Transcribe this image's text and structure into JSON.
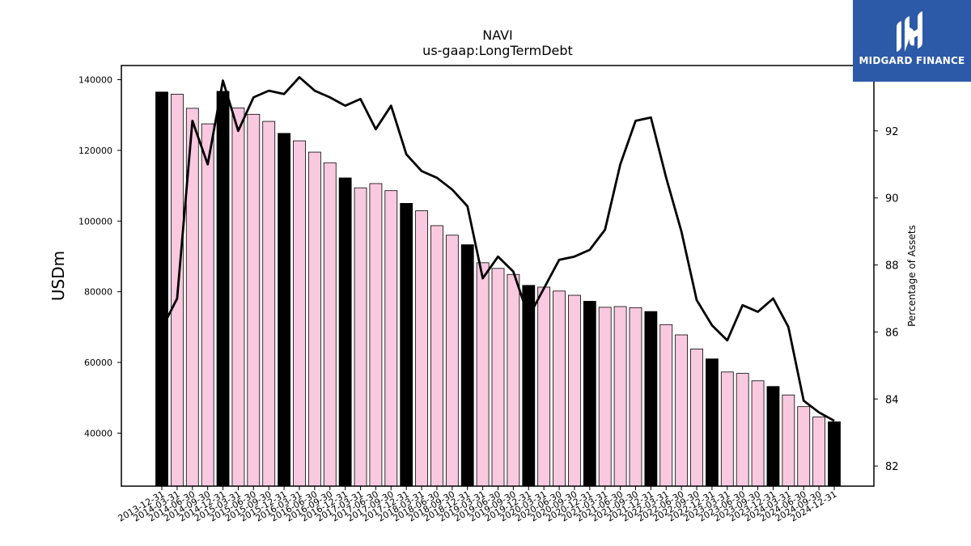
{
  "brand": {
    "name": "MIDGARD FINANCE",
    "logo_color": "#2d5aa8"
  },
  "chart_data": {
    "type": "bar",
    "title": "NAVI",
    "subtitle": "us-gaap:LongTermDebt",
    "ylabel": "USDm",
    "y2label": "Percentage of Assets",
    "ylim": [
      25000,
      144000
    ],
    "y2lim": [
      81.4,
      93.95
    ],
    "yticks": [
      40000,
      60000,
      80000,
      100000,
      120000,
      140000
    ],
    "y2ticks": [
      82,
      84,
      86,
      88,
      90,
      92
    ],
    "categories": [
      "2013-12-31",
      "2014-03-31",
      "2014-06-30",
      "2014-09-30",
      "2014-12-31",
      "2015-03-31",
      "2015-06-30",
      "2015-09-30",
      "2015-12-31",
      "2016-03-31",
      "2016-06-30",
      "2016-09-30",
      "2016-12-31",
      "2017-03-31",
      "2017-06-30",
      "2017-09-30",
      "2017-12-31",
      "2018-03-31",
      "2018-06-30",
      "2018-09-30",
      "2018-12-31",
      "2019-03-31",
      "2019-06-30",
      "2019-09-30",
      "2019-12-31",
      "2020-03-31",
      "2020-06-30",
      "2020-09-30",
      "2020-12-31",
      "2021-03-31",
      "2021-06-30",
      "2021-09-30",
      "2021-12-31",
      "2022-03-31",
      "2022-06-30",
      "2022-09-30",
      "2022-12-31",
      "2023-03-31",
      "2023-06-30",
      "2023-09-30",
      "2023-12-31",
      "2024-03-31",
      "2024-06-30",
      "2024-09-30",
      "2024-12-31"
    ],
    "series": [
      {
        "kind": "bar",
        "values": [
          136500,
          135900,
          131900,
          127500,
          136700,
          132000,
          130200,
          128200,
          124800,
          122700,
          119500,
          116500,
          112200,
          109400,
          110600,
          108600,
          105000,
          102900,
          98700,
          96000,
          93300,
          88200,
          86600,
          84900,
          81800,
          81300,
          80200,
          79000,
          77300,
          75600,
          75800,
          75500,
          74400,
          70700,
          67800,
          63800,
          61000,
          57300,
          56900,
          54800,
          53200,
          50800,
          47500,
          44600,
          43200
        ]
      },
      {
        "kind": "line",
        "axis": "right",
        "values": [
          86.1,
          87.0,
          92.3,
          91.0,
          93.5,
          92.0,
          93.0,
          93.2,
          93.1,
          93.6,
          93.2,
          93.0,
          92.75,
          92.95,
          92.05,
          92.75,
          91.3,
          90.8,
          90.6,
          90.25,
          89.75,
          87.6,
          88.25,
          87.8,
          86.45,
          87.3,
          88.15,
          88.25,
          88.45,
          89.05,
          91.0,
          92.3,
          92.4,
          90.6,
          89.0,
          86.95,
          86.2,
          85.75,
          86.8,
          86.6,
          87.0,
          86.15,
          83.95,
          83.6,
          83.35
        ]
      }
    ],
    "bar_colors": {
      "annual": "#000000",
      "quarterly": "#f9c9df"
    },
    "line_color": "#000000",
    "grid": false,
    "legend": "none"
  }
}
